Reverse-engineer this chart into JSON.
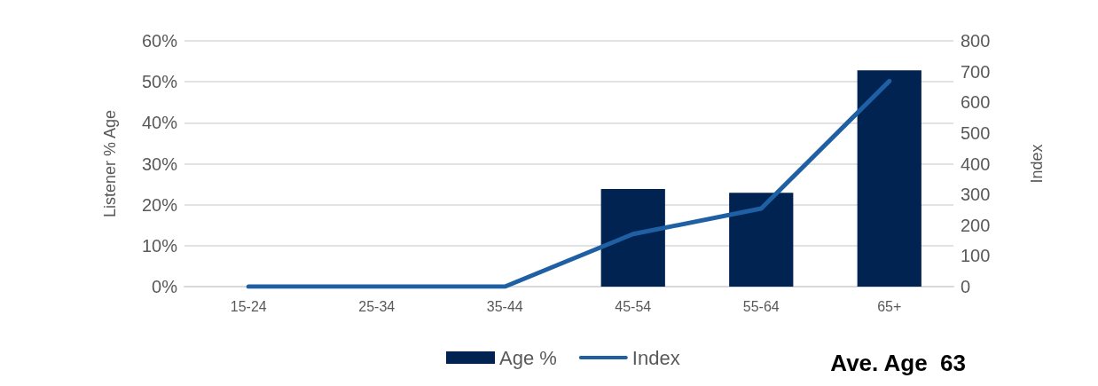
{
  "chart_data": {
    "type": "bar",
    "ylabel": "Listener % Age",
    "y2label": "Index",
    "categories": [
      "15-24",
      "25-34",
      "35-44",
      "45-54",
      "55-64",
      "65+"
    ],
    "series": [
      {
        "name": "Age %",
        "color": "#002352",
        "values": [
          0,
          0,
          0,
          23.8,
          22.9,
          52.8
        ]
      },
      {
        "name": "Index",
        "type": "line",
        "axis": "y2",
        "color": "#1f5fa3",
        "values": [
          0,
          0,
          0,
          171,
          254,
          669
        ]
      }
    ],
    "ylim": [
      0,
      60
    ],
    "yticks": [
      {
        "value": 0,
        "label": "0%"
      },
      {
        "value": 10,
        "label": "10%"
      },
      {
        "value": 20,
        "label": "20%"
      },
      {
        "value": 30,
        "label": "30%"
      },
      {
        "value": 40,
        "label": "40%"
      },
      {
        "value": 50,
        "label": "50%"
      },
      {
        "value": 60,
        "label": "60%"
      }
    ],
    "y2lim": [
      0,
      800
    ],
    "y2ticks": [
      0,
      100,
      200,
      300,
      400,
      500,
      600,
      700,
      800
    ],
    "grid": "y",
    "legend": "bottom",
    "marker": "none",
    "line_style": "solid",
    "annotations": [
      "Ave. Age  63"
    ]
  }
}
